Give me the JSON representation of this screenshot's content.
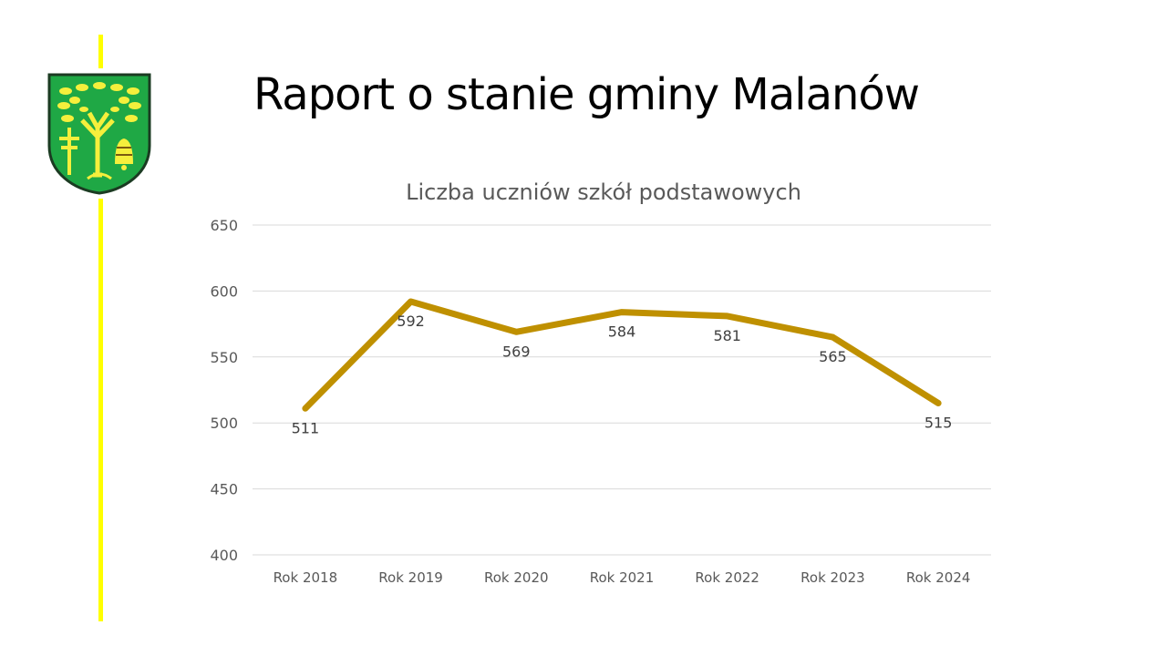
{
  "slide": {
    "title": "Raport o stanie gminy Malanów",
    "accent_color": "#ffff00"
  },
  "logo": {
    "name": "coat-of-arms-malanow",
    "colors": {
      "field": "#1fa845",
      "charges": "#f5ef3c"
    }
  },
  "chart_data": {
    "type": "line",
    "title": "Liczba uczniów szkół podstawowych",
    "xlabel": "",
    "ylabel": "",
    "categories": [
      "Rok 2018",
      "Rok 2019",
      "Rok 2020",
      "Rok 2021",
      "Rok 2022",
      "Rok 2023",
      "Rok 2024"
    ],
    "values": [
      511,
      592,
      569,
      584,
      581,
      565,
      515
    ],
    "ylim": [
      400,
      650
    ],
    "yticks": [
      400,
      450,
      500,
      550,
      600,
      650
    ],
    "grid": true,
    "legend": "none",
    "data_labels": true,
    "line_color": "#bf9000"
  }
}
